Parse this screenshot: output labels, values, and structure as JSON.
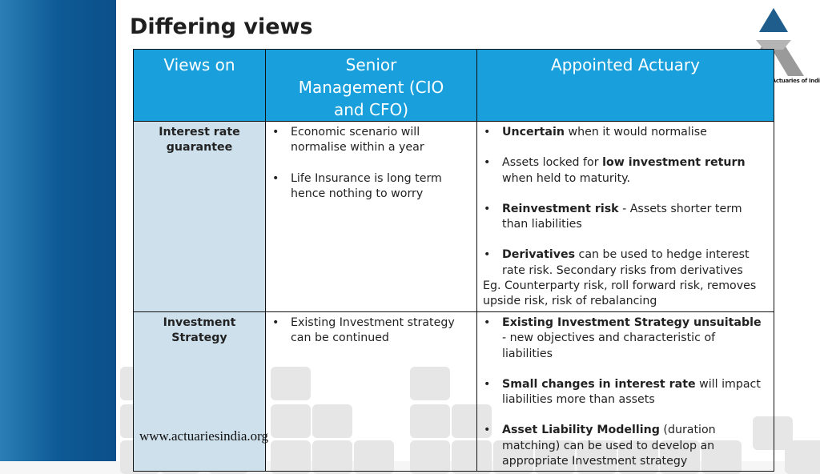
{
  "title": "Differing views",
  "logo_text": "Institute of Actuaries of India",
  "footer_url": "www.actuariesindia.org",
  "colors": {
    "header": "#19a0dc",
    "label_cell": "#cde0ec",
    "left_strip": "#0e5a96"
  },
  "table": {
    "headers": [
      "Views on",
      "Senior Management (CIO and CFO)",
      "Appointed Actuary"
    ],
    "rows": [
      {
        "label": "Interest rate guarantee",
        "management": [
          "Economic scenario will normalise within a year",
          "Life Insurance is long term hence nothing to worry"
        ],
        "actuary": [
          {
            "bold": "Uncertain",
            "text": " when it would normalise"
          },
          {
            "pre": "Assets locked for ",
            "bold": "low investment return",
            "text": " when held to maturity."
          },
          {
            "bold": "Reinvestment risk",
            "text": " - Assets shorter term than liabilities"
          },
          {
            "bold": "Derivatives",
            "text": " can be used to hedge interest rate risk. Secondary risks from derivatives"
          }
        ],
        "actuary_note": "Eg. Counterparty risk, roll forward risk, removes upside risk, risk of rebalancing"
      },
      {
        "label": "Investment Strategy",
        "management": [
          "Existing Investment strategy can be continued"
        ],
        "actuary": [
          {
            "bold": "Existing Investment Strategy unsuitable",
            "text": " - new objectives and characteristic of liabilities"
          },
          {
            "bold": "Small changes in interest rate",
            "text": " will impact liabilities more than assets"
          },
          {
            "bold": "Asset Liability Modelling",
            "text": " (duration matching) can be used to develop an appropriate Investment strategy"
          }
        ]
      }
    ]
  }
}
